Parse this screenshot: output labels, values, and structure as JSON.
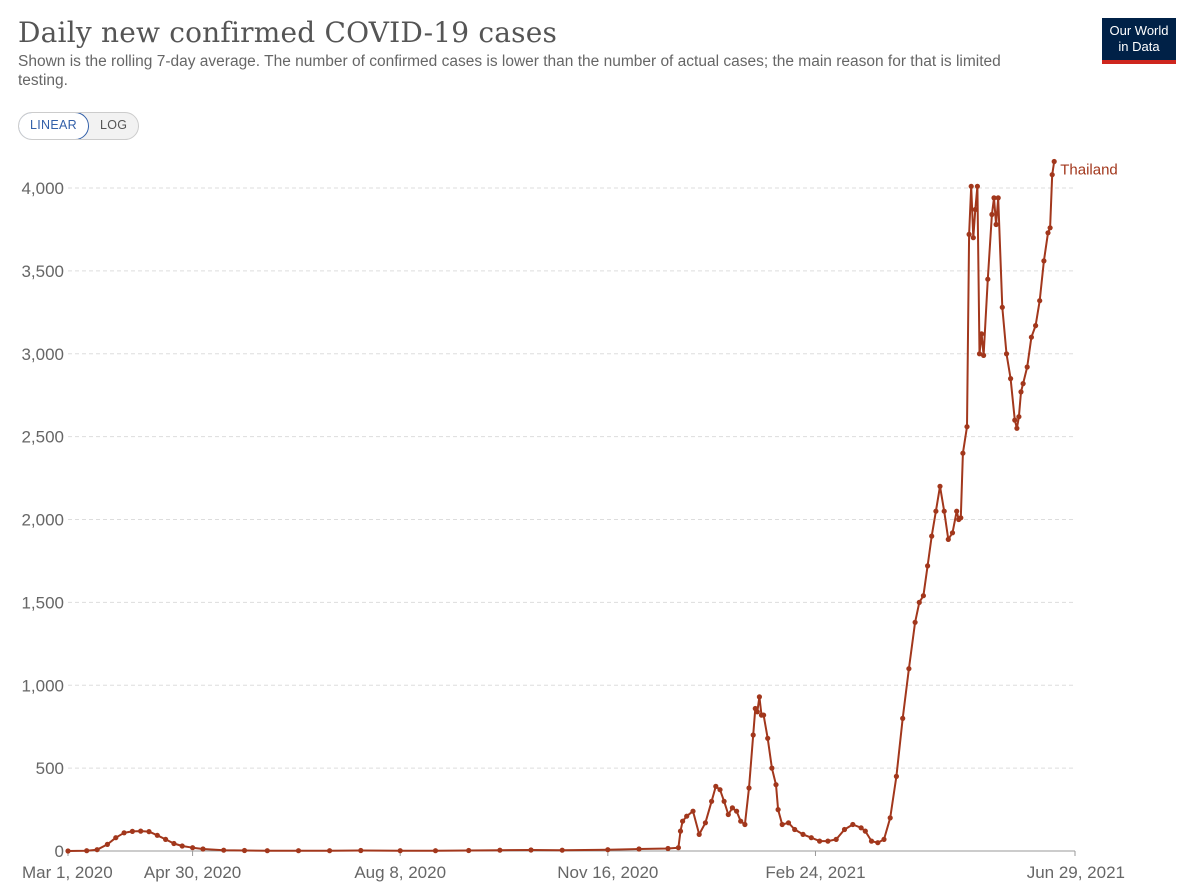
{
  "header": {
    "title": "Daily new confirmed COVID-19 cases",
    "subtitle": "Shown is the rolling 7-day average. The number of confirmed cases is lower than the number of actual cases; the main reason for that is limited testing."
  },
  "logo": {
    "line1": "Our World",
    "line2": "in Data",
    "bg_color": "#002147",
    "accent_color": "#ce261e"
  },
  "scale_toggle": {
    "options": [
      "LINEAR",
      "LOG"
    ],
    "selected": "LINEAR"
  },
  "chart_data": {
    "type": "line",
    "x_axis": {
      "type": "date",
      "min": "2020-03-01",
      "max": "2021-06-29",
      "ticks": [
        "2020-03-01",
        "2020-04-30",
        "2020-08-08",
        "2020-11-16",
        "2021-02-24",
        "2021-06-29"
      ],
      "tick_labels": [
        "Mar 1, 2020",
        "Apr 30, 2020",
        "Aug 8, 2020",
        "Nov 16, 2020",
        "Feb 24, 2021",
        "Jun 29, 2021"
      ]
    },
    "y_axis": {
      "min": 0,
      "max": 4000,
      "ticks": [
        0,
        500,
        1000,
        1500,
        2000,
        2500,
        3000,
        3500,
        4000
      ],
      "tick_labels": [
        "0",
        "500",
        "1,000",
        "1,500",
        "2,000",
        "2,500",
        "3,000",
        "3,500",
        "4,000"
      ]
    },
    "grid": true,
    "series": [
      {
        "name": "Thailand",
        "color": "#a2371c",
        "markers": true,
        "points": [
          [
            "2020-03-01",
            0
          ],
          [
            "2020-03-10",
            2
          ],
          [
            "2020-03-15",
            8
          ],
          [
            "2020-03-20",
            40
          ],
          [
            "2020-03-24",
            80
          ],
          [
            "2020-03-28",
            110
          ],
          [
            "2020-04-01",
            118
          ],
          [
            "2020-04-05",
            120
          ],
          [
            "2020-04-09",
            117
          ],
          [
            "2020-04-13",
            95
          ],
          [
            "2020-04-17",
            70
          ],
          [
            "2020-04-21",
            45
          ],
          [
            "2020-04-25",
            30
          ],
          [
            "2020-04-30",
            20
          ],
          [
            "2020-05-05",
            12
          ],
          [
            "2020-05-15",
            5
          ],
          [
            "2020-05-25",
            3
          ],
          [
            "2020-06-05",
            2
          ],
          [
            "2020-06-20",
            2
          ],
          [
            "2020-07-05",
            2
          ],
          [
            "2020-07-20",
            3
          ],
          [
            "2020-08-08",
            2
          ],
          [
            "2020-08-25",
            2
          ],
          [
            "2020-09-10",
            3
          ],
          [
            "2020-09-25",
            5
          ],
          [
            "2020-10-10",
            6
          ],
          [
            "2020-10-25",
            5
          ],
          [
            "2020-11-16",
            8
          ],
          [
            "2020-12-01",
            12
          ],
          [
            "2020-12-15",
            15
          ],
          [
            "2020-12-20",
            20
          ],
          [
            "2020-12-21",
            120
          ],
          [
            "2020-12-22",
            180
          ],
          [
            "2020-12-24",
            210
          ],
          [
            "2020-12-27",
            240
          ],
          [
            "2020-12-30",
            100
          ],
          [
            "2021-01-02",
            170
          ],
          [
            "2021-01-05",
            300
          ],
          [
            "2021-01-07",
            390
          ],
          [
            "2021-01-09",
            370
          ],
          [
            "2021-01-11",
            300
          ],
          [
            "2021-01-13",
            220
          ],
          [
            "2021-01-15",
            260
          ],
          [
            "2021-01-17",
            240
          ],
          [
            "2021-01-19",
            180
          ],
          [
            "2021-01-21",
            160
          ],
          [
            "2021-01-23",
            380
          ],
          [
            "2021-01-25",
            700
          ],
          [
            "2021-01-26",
            860
          ],
          [
            "2021-01-27",
            840
          ],
          [
            "2021-01-28",
            930
          ],
          [
            "2021-01-29",
            820
          ],
          [
            "2021-01-30",
            820
          ],
          [
            "2021-02-01",
            680
          ],
          [
            "2021-02-03",
            500
          ],
          [
            "2021-02-05",
            400
          ],
          [
            "2021-02-06",
            250
          ],
          [
            "2021-02-08",
            160
          ],
          [
            "2021-02-11",
            170
          ],
          [
            "2021-02-14",
            130
          ],
          [
            "2021-02-18",
            100
          ],
          [
            "2021-02-22",
            80
          ],
          [
            "2021-02-26",
            60
          ],
          [
            "2021-03-02",
            60
          ],
          [
            "2021-03-06",
            70
          ],
          [
            "2021-03-10",
            130
          ],
          [
            "2021-03-14",
            160
          ],
          [
            "2021-03-18",
            140
          ],
          [
            "2021-03-20",
            120
          ],
          [
            "2021-03-23",
            60
          ],
          [
            "2021-03-26",
            50
          ],
          [
            "2021-03-29",
            70
          ],
          [
            "2021-04-01",
            200
          ],
          [
            "2021-04-04",
            450
          ],
          [
            "2021-04-07",
            800
          ],
          [
            "2021-04-10",
            1100
          ],
          [
            "2021-04-13",
            1380
          ],
          [
            "2021-04-15",
            1500
          ],
          [
            "2021-04-17",
            1540
          ],
          [
            "2021-04-19",
            1720
          ],
          [
            "2021-04-21",
            1900
          ],
          [
            "2021-04-23",
            2050
          ],
          [
            "2021-04-25",
            2200
          ],
          [
            "2021-04-27",
            2050
          ],
          [
            "2021-04-29",
            1880
          ],
          [
            "2021-05-01",
            1920
          ],
          [
            "2021-05-03",
            2050
          ],
          [
            "2021-05-04",
            2000
          ],
          [
            "2021-05-05",
            2010
          ],
          [
            "2021-05-06",
            2400
          ],
          [
            "2021-05-08",
            2560
          ],
          [
            "2021-05-09",
            3720
          ],
          [
            "2021-05-10",
            4010
          ],
          [
            "2021-05-11",
            3700
          ],
          [
            "2021-05-12",
            3870
          ],
          [
            "2021-05-13",
            4010
          ],
          [
            "2021-05-14",
            3000
          ],
          [
            "2021-05-15",
            3120
          ],
          [
            "2021-05-16",
            2990
          ],
          [
            "2021-05-18",
            3450
          ],
          [
            "2021-05-20",
            3840
          ],
          [
            "2021-05-21",
            3940
          ],
          [
            "2021-05-22",
            3780
          ],
          [
            "2021-05-23",
            3940
          ],
          [
            "2021-05-25",
            3280
          ],
          [
            "2021-05-27",
            3000
          ],
          [
            "2021-05-29",
            2850
          ],
          [
            "2021-05-31",
            2600
          ],
          [
            "2021-06-01",
            2550
          ],
          [
            "2021-06-02",
            2620
          ],
          [
            "2021-06-03",
            2770
          ],
          [
            "2021-06-04",
            2820
          ],
          [
            "2021-06-06",
            2920
          ],
          [
            "2021-06-08",
            3100
          ],
          [
            "2021-06-10",
            3170
          ],
          [
            "2021-06-12",
            3320
          ],
          [
            "2021-06-14",
            3560
          ],
          [
            "2021-06-16",
            3730
          ],
          [
            "2021-06-17",
            3760
          ],
          [
            "2021-06-18",
            4080
          ],
          [
            "2021-06-19",
            4160
          ]
        ]
      }
    ]
  }
}
